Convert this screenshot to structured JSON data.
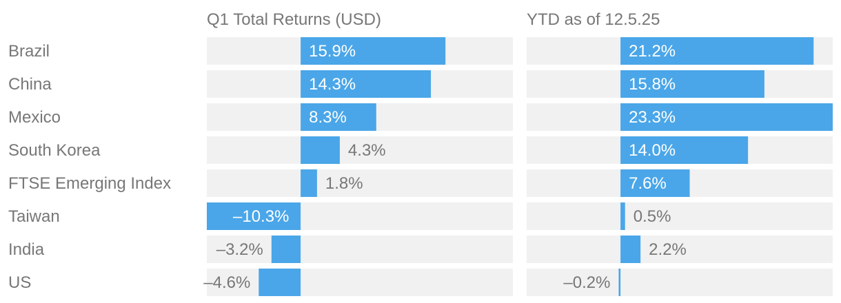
{
  "colors": {
    "bar": "#4aa6e8",
    "track": "#f1f1f1",
    "text_muted": "#777777",
    "text_on_bar": "#ffffff"
  },
  "chart_data": {
    "type": "bar",
    "orientation": "horizontal",
    "categories": [
      "Brazil",
      "China",
      "Mexico",
      "South Korea",
      "FTSE Emerging Index",
      "Taiwan",
      "India",
      "US"
    ],
    "panels": [
      {
        "title": "Q1 Total Returns (USD)",
        "values": [
          15.9,
          14.3,
          8.3,
          4.3,
          1.8,
          -10.3,
          -3.2,
          -4.6
        ],
        "labels": [
          "15.9%",
          "14.3%",
          "8.3%",
          "4.3%",
          "1.8%",
          "–10.3%",
          "–3.2%",
          "–4.6%"
        ],
        "xlim": [
          -10.3,
          23.3
        ]
      },
      {
        "title": "YTD as of 12.5.25",
        "values": [
          21.2,
          15.8,
          23.3,
          14.0,
          7.6,
          0.5,
          2.2,
          -0.2
        ],
        "labels": [
          "21.2%",
          "15.8%",
          "23.3%",
          "14.0%",
          "7.6%",
          "0.5%",
          "2.2%",
          "–0.2%"
        ],
        "xlim": [
          -10.3,
          23.3
        ]
      }
    ],
    "grid": false,
    "legend": "none"
  }
}
